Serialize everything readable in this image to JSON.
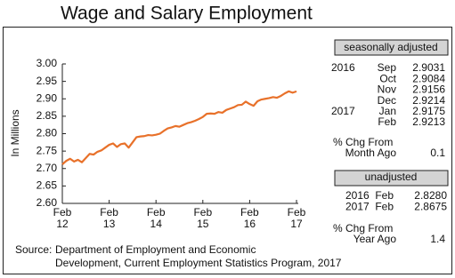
{
  "chart_data": {
    "type": "line",
    "title": "Wage and Salary Employment",
    "y_label": "In Millions",
    "categories": [
      "Feb 12",
      null,
      null,
      null,
      null,
      null,
      null,
      null,
      null,
      null,
      null,
      null,
      "Feb 13",
      null,
      null,
      null,
      null,
      null,
      null,
      null,
      null,
      null,
      null,
      null,
      "Feb 14",
      null,
      null,
      null,
      null,
      null,
      null,
      null,
      null,
      null,
      null,
      null,
      "Feb 15",
      null,
      null,
      null,
      null,
      null,
      null,
      null,
      null,
      null,
      null,
      null,
      "Feb 16",
      null,
      null,
      null,
      null,
      null,
      null,
      null,
      null,
      null,
      null,
      null,
      "Feb 17"
    ],
    "series": [
      {
        "name": "Wage and Salary Employment",
        "color": "#e8712a",
        "values": [
          2.712,
          2.722,
          2.728,
          2.72,
          2.725,
          2.718,
          2.73,
          2.742,
          2.74,
          2.748,
          2.752,
          2.76,
          2.768,
          2.772,
          2.762,
          2.77,
          2.772,
          2.76,
          2.775,
          2.79,
          2.792,
          2.793,
          2.796,
          2.795,
          2.797,
          2.8,
          2.808,
          2.815,
          2.818,
          2.822,
          2.82,
          2.825,
          2.83,
          2.833,
          2.837,
          2.842,
          2.848,
          2.857,
          2.858,
          2.857,
          2.862,
          2.86,
          2.868,
          2.872,
          2.876,
          2.882,
          2.883,
          2.892,
          2.885,
          2.88,
          2.893,
          2.898,
          2.9,
          2.902,
          2.905,
          2.9031,
          2.9084,
          2.9156,
          2.9214,
          2.9175,
          2.9213
        ]
      }
    ],
    "ylim": [
      2.6,
      3.0
    ],
    "yticks": [
      {
        "value": 2.6,
        "label": "2.60"
      },
      {
        "value": 2.65,
        "label": "2.65"
      },
      {
        "value": 2.7,
        "label": "2.70"
      },
      {
        "value": 2.75,
        "label": "2.75"
      },
      {
        "value": 2.8,
        "label": "2.80"
      },
      {
        "value": 2.85,
        "label": "2.85"
      },
      {
        "value": 2.9,
        "label": "2.90"
      },
      {
        "value": 2.95,
        "label": "2.95"
      },
      {
        "value": 3.0,
        "label": "3.00"
      }
    ],
    "grid": false
  },
  "side_panel": {
    "seasonal": {
      "header": "seasonally adjusted",
      "rows": [
        [
          "2016",
          "Sep",
          "2.9031"
        ],
        [
          null,
          "Oct",
          "2.9084"
        ],
        [
          null,
          "Nov",
          "2.9156"
        ],
        [
          null,
          "Dec",
          "2.9214"
        ],
        [
          "2017",
          "Jan",
          "2.9175"
        ],
        [
          null,
          "Feb",
          "2.9213"
        ]
      ],
      "change_label_1": "% Chg From",
      "change_label_2": "Month Ago",
      "change_value": "0.1"
    },
    "unadjusted": {
      "header": "unadjusted",
      "rows": [
        [
          "2016",
          "Feb",
          "2.8280"
        ],
        [
          "2017",
          "Feb",
          "2.8675"
        ]
      ],
      "change_label_1": "% Chg From",
      "change_label_2": "Year Ago",
      "change_value": "1.4"
    }
  },
  "source": {
    "label": "Source:",
    "line1": "Department of Employment and Economic",
    "line2": "Development, Current Employment Statistics Program, 2017"
  }
}
